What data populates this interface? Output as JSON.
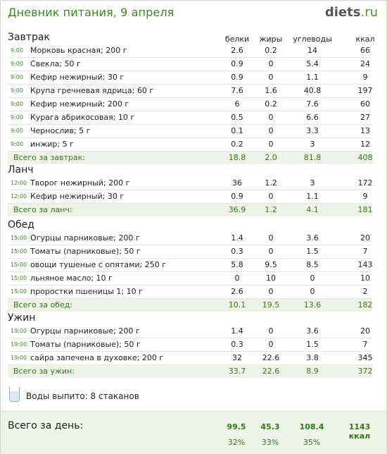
{
  "header": {
    "title": "Дневник питания, 9 апреля",
    "logo_main": "diets",
    "logo_tld": ".ru"
  },
  "columns": {
    "protein": "белки",
    "fat": "жиры",
    "carbs": "углеводы",
    "kcal": "ккал"
  },
  "meals": [
    {
      "title": "Завтрак",
      "items": [
        {
          "time": "9:00",
          "name": "Морковь красная; 200 г",
          "p": "2.6",
          "f": "0.2",
          "c": "14",
          "k": "66"
        },
        {
          "time": "9:00",
          "name": "Свекла; 50 г",
          "p": "0.9",
          "f": "0",
          "c": "5.4",
          "k": "24"
        },
        {
          "time": "9:00",
          "name": "Кефир нежирный; 30 г",
          "p": "0.9",
          "f": "0",
          "c": "1.1",
          "k": "9"
        },
        {
          "time": "9:00",
          "name": "Крупа гречневая ядрица; 60 г",
          "p": "7.6",
          "f": "1.6",
          "c": "40.8",
          "k": "197"
        },
        {
          "time": "9:00",
          "name": "Кефир нежирный; 200 г",
          "p": "6",
          "f": "0.2",
          "c": "7.6",
          "k": "60"
        },
        {
          "time": "9:00",
          "name": "Курага абрикосовая; 10 г",
          "p": "0.5",
          "f": "0",
          "c": "6.6",
          "k": "27"
        },
        {
          "time": "9:00",
          "name": "Чернослив; 5 г",
          "p": "0.1",
          "f": "0",
          "c": "3.3",
          "k": "13"
        },
        {
          "time": "9:00",
          "name": "инжир; 5 г",
          "p": "0.2",
          "f": "0",
          "c": "3",
          "k": "12"
        }
      ],
      "total": {
        "label": "Всего за завтрак:",
        "p": "18.8",
        "f": "2.0",
        "c": "81.8",
        "k": "408"
      }
    },
    {
      "title": "Ланч",
      "items": [
        {
          "time": "12:00",
          "name": "Творог нежирный; 200 г",
          "p": "36",
          "f": "1.2",
          "c": "3",
          "k": "172"
        },
        {
          "time": "12:00",
          "name": "Кефир нежирный; 30 г",
          "p": "0.9",
          "f": "0",
          "c": "1.1",
          "k": "9"
        }
      ],
      "total": {
        "label": "Всего за ланч:",
        "p": "36.9",
        "f": "1.2",
        "c": "4.1",
        "k": "181"
      }
    },
    {
      "title": "Обед",
      "items": [
        {
          "time": "15:00",
          "name": "Огурцы парниковые; 200 г",
          "p": "1.4",
          "f": "0",
          "c": "3.6",
          "k": "20"
        },
        {
          "time": "15:00",
          "name": "Томаты (парниковые); 50 г",
          "p": "0.3",
          "f": "0",
          "c": "1.5",
          "k": "7"
        },
        {
          "time": "15:00",
          "name": "овощи тушеные с опятами; 250 г",
          "p": "5.8",
          "f": "9.5",
          "c": "8.5",
          "k": "143"
        },
        {
          "time": "15:00",
          "name": "льняное масло; 10 г",
          "p": "0",
          "f": "10",
          "c": "0",
          "k": "10"
        },
        {
          "time": "15:00",
          "name": "проростки пшеницы 1; 10 г",
          "p": "2.6",
          "f": "0",
          "c": "0",
          "k": "2"
        }
      ],
      "total": {
        "label": "Всего за обед:",
        "p": "10.1",
        "f": "19.5",
        "c": "13.6",
        "k": "182"
      }
    },
    {
      "title": "Ужин",
      "items": [
        {
          "time": "19:00",
          "name": "Огурцы парниковые; 200 г",
          "p": "1.4",
          "f": "0",
          "c": "3.6",
          "k": "20"
        },
        {
          "time": "19:00",
          "name": "Томаты (парниковые); 50 г",
          "p": "0.3",
          "f": "0",
          "c": "1.5",
          "k": "7"
        },
        {
          "time": "19:00",
          "name": "сайра запечена в духовке; 200 г",
          "p": "32",
          "f": "22.6",
          "c": "3.8",
          "k": "345"
        }
      ],
      "total": {
        "label": "Всего за ужин:",
        "p": "33.7",
        "f": "22.6",
        "c": "8.9",
        "k": "372"
      }
    }
  ],
  "water": {
    "icon": "glass-icon",
    "text": "Воды выпито: 8 стаканов"
  },
  "day": {
    "label": "Всего за день:",
    "p": "99.5",
    "f": "45.3",
    "c": "108.4",
    "k": "1143 ккал",
    "p_pct": "32%",
    "f_pct": "33%",
    "c_pct": "35%"
  },
  "colors": {
    "accent_green": "#3a8a1e",
    "total_bg": "#eef5e8"
  }
}
